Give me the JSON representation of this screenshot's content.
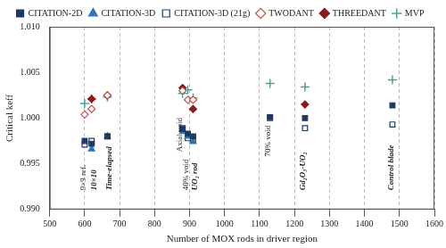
{
  "chart_data": {
    "type": "scatter",
    "x_label": "Number of MOX rods in driver region",
    "y_label": "Critical keff",
    "xlim": [
      500,
      1600
    ],
    "xticks": [
      500,
      600,
      700,
      800,
      900,
      1000,
      1100,
      1200,
      1300,
      1400,
      1500,
      1600
    ],
    "ylim": [
      0.99,
      1.01
    ],
    "yticks": [
      {
        "value": 0.99,
        "label": "0.990"
      },
      0.995,
      {
        "value": 1.0,
        "label": "1.000"
      },
      1.005,
      {
        "value": 1.01,
        "label": "1.010"
      }
    ],
    "grid": true,
    "legend": "top",
    "series": [
      {
        "name": "CITATION-2D",
        "color": "#1f3864",
        "marker": "square",
        "x": [
          600,
          620,
          665,
          880,
          895,
          910,
          1130,
          1230,
          1480
        ],
        "values": [
          0.9975,
          0.9972,
          0.998,
          0.9988,
          0.9983,
          0.998,
          1.0001,
          1.0,
          1.0014
        ]
      },
      {
        "name": "CITATION-3D",
        "color": "#2e75b6",
        "marker": "triangle",
        "x": [
          620,
          665,
          880,
          895,
          910
        ],
        "values": [
          0.9966,
          0.998,
          0.9985,
          0.998,
          0.9974
        ]
      },
      {
        "name": "CITATION-3D (21g)",
        "color": "#1f3864",
        "marker": "square-open",
        "x": [
          600,
          620,
          665,
          880,
          895,
          910,
          1130,
          1230,
          1480
        ],
        "values": [
          0.9971,
          0.9975,
          0.998,
          0.9989,
          0.9978,
          0.9977,
          1.0,
          0.9989,
          0.9993
        ]
      },
      {
        "name": "TWODANT",
        "color": "#c0504d",
        "marker": "diamond-open",
        "x": [
          600,
          620,
          665,
          880,
          895,
          910
        ],
        "values": [
          1.0004,
          1.001,
          1.0025,
          1.003,
          1.002,
          1.002
        ]
      },
      {
        "name": "THREEDANT",
        "color": "#8b1a1a",
        "marker": "diamond",
        "x": [
          620,
          665,
          880,
          910,
          1230
        ],
        "values": [
          1.0021,
          1.0025,
          1.0033,
          1.001,
          1.0015
        ]
      },
      {
        "name": "MVP",
        "color": "#4aa39a",
        "marker": "plus",
        "x": [
          600,
          620,
          665,
          880,
          895,
          910,
          1130,
          1230,
          1480
        ],
        "values": [
          1.0016,
          1.0021,
          1.0023,
          1.0027,
          1.0031,
          1.0022,
          1.0038,
          1.0034,
          1.0042
        ]
      }
    ],
    "annotations": [
      {
        "text": "9×9 ref.",
        "x": 598,
        "y": 0.9921
      },
      {
        "text": "10×10",
        "x": 627,
        "y": 0.9921
      },
      {
        "text": "Time-elapsed",
        "x": 672,
        "y": 0.9921
      },
      {
        "text": "Axial void",
        "x": 872,
        "y": 0.9963
      },
      {
        "text": "40% void",
        "x": 890,
        "y": 0.9921
      },
      {
        "text": "UO₂ rod",
        "x": 915,
        "y": 0.9921
      },
      {
        "text": "70% void",
        "x": 1125,
        "y": 0.9958
      },
      {
        "text": "Gd₂O₃-UO₂",
        "x": 1225,
        "y": 0.9921
      },
      {
        "text": "Control blade",
        "x": 1478,
        "y": 0.9921
      }
    ]
  }
}
